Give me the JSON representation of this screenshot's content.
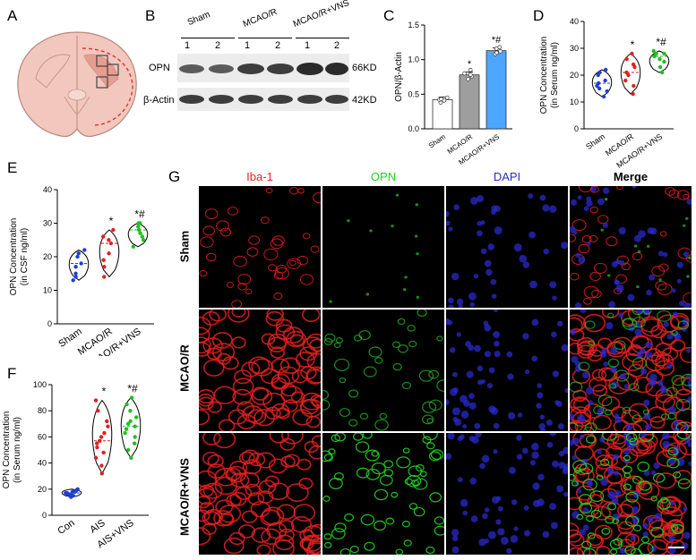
{
  "panels": {
    "A": "A",
    "B": "B",
    "C": "C",
    "D": "D",
    "E": "E",
    "F": "F",
    "G": "G"
  },
  "blot": {
    "groups": [
      "Sham",
      "MCAO/R",
      "MCAO/R+VNS"
    ],
    "lanes": [
      "1",
      "2",
      "1",
      "2",
      "1",
      "2"
    ],
    "proteins": [
      {
        "name": "OPN",
        "kd": "66KD"
      },
      {
        "name": "β-Actin",
        "kd": "42KD"
      }
    ]
  },
  "micro": {
    "channels": [
      {
        "name": "Iba-1",
        "color": "#e8201f"
      },
      {
        "name": "OPN",
        "color": "#22cc22"
      },
      {
        "name": "DAPI",
        "color": "#2a2acc"
      },
      {
        "name": "Merge",
        "color": "#000000"
      }
    ],
    "rows": [
      "Sham",
      "MCAO/R",
      "MCAO/R+VNS"
    ]
  },
  "colors": {
    "sham": "#1e3fd6",
    "mcao": "#e02020",
    "vns": "#1fbf1f",
    "bar_sham": "#ffffff",
    "bar_mcao": "#9e9e9e",
    "bar_vns": "#4da6ff"
  },
  "chart_data": [
    {
      "id": "C",
      "type": "bar",
      "categories": [
        "Sham",
        "MCAO/R",
        "MCAO/R+VNS"
      ],
      "values": [
        0.42,
        0.78,
        1.13
      ],
      "points": [
        [
          0.38,
          0.42,
          0.45,
          0.43,
          0.41
        ],
        [
          0.72,
          0.8,
          0.76,
          0.85,
          0.78
        ],
        [
          1.08,
          1.12,
          1.16,
          1.18,
          1.1
        ]
      ],
      "annotations": [
        "",
        "*",
        "*#"
      ],
      "ylabel": "OPN/β-Actin",
      "ylim": [
        0,
        1.5
      ],
      "yticks": [
        "0.0",
        "0.5",
        "1.0",
        "1.5"
      ]
    },
    {
      "id": "D",
      "type": "violin",
      "categories": [
        "Sham",
        "MCAO/R",
        "MCAO/R+VNS"
      ],
      "points": [
        [
          12,
          14,
          15,
          16,
          17,
          18,
          20,
          21,
          22
        ],
        [
          13,
          16,
          18,
          20,
          21,
          23,
          24,
          26,
          28
        ],
        [
          21,
          23,
          25,
          26,
          27,
          28,
          28,
          29
        ]
      ],
      "annotations": [
        "",
        "*",
        "*#"
      ],
      "ylabel": "OPN Concentration (in Serum ng/ml)",
      "ylim": [
        0,
        40
      ],
      "yticks": [
        "0",
        "10",
        "20",
        "30",
        "40"
      ]
    },
    {
      "id": "E",
      "type": "violin",
      "categories": [
        "Sham",
        "MCAO/R",
        "MCAO/R+VNS"
      ],
      "points": [
        [
          13,
          14,
          15,
          17,
          18,
          20,
          21,
          22
        ],
        [
          14,
          17,
          19,
          21,
          24,
          25,
          26,
          28
        ],
        [
          23,
          25,
          26,
          27,
          28,
          29,
          30,
          30
        ]
      ],
      "annotations": [
        "",
        "*",
        "*#"
      ],
      "ylabel": "OPN Concentration (in CSF ng/ml)",
      "ylim": [
        0,
        40
      ],
      "yticks": [
        "0",
        "10",
        "20",
        "30",
        "40"
      ]
    },
    {
      "id": "F",
      "type": "violin",
      "categories": [
        "Con",
        "AIS",
        "AIS+VNS"
      ],
      "points": [
        [
          14,
          15,
          16,
          16,
          17,
          17,
          18,
          18,
          19,
          20
        ],
        [
          32,
          38,
          44,
          48,
          52,
          55,
          57,
          60,
          63,
          68,
          72,
          80,
          88
        ],
        [
          44,
          50,
          55,
          60,
          63,
          66,
          68,
          70,
          72,
          75,
          80,
          85,
          90
        ]
      ],
      "annotations": [
        "",
        "*",
        "*#"
      ],
      "ylabel": "OPN  Concentration (in Serum ng/ml)",
      "ylim": [
        0,
        100
      ],
      "yticks": [
        "0",
        "20",
        "40",
        "60",
        "80",
        "100"
      ]
    }
  ]
}
